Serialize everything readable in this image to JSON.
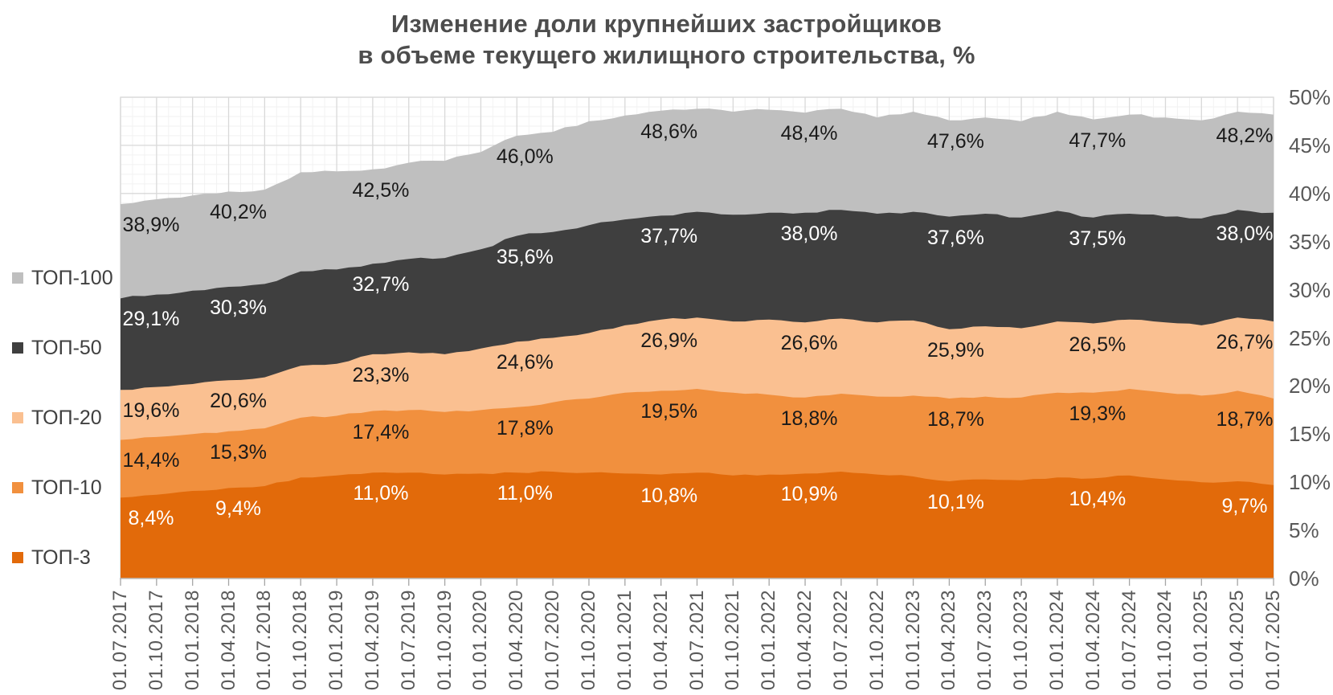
{
  "title": {
    "line1": "Изменение доли крупнейших застройщиков",
    "line2": "в объеме текущего жилищного строительства, %"
  },
  "chart_data": {
    "type": "area",
    "overlapping": true,
    "title": "Изменение доли крупнейших застройщиков в объеме текущего жилищного строительства, %",
    "ylim": [
      0,
      50
    ],
    "y_tick_step": 5,
    "y_tick_labels": [
      "0%",
      "5%",
      "10%",
      "15%",
      "20%",
      "25%",
      "30%",
      "35%",
      "40%",
      "45%",
      "50%"
    ],
    "grid": {
      "major_color": "#d9d9d9",
      "minor_color": "#f2f2f2",
      "minor_vertical_per_quarter": 3,
      "minor_horizontal_step_pct": 1
    },
    "legend_position": "left",
    "x": [
      "01.07.2017",
      "01.10.2017",
      "01.01.2018",
      "01.04.2018",
      "01.07.2018",
      "01.10.2018",
      "01.01.2019",
      "01.04.2019",
      "01.07.2019",
      "01.10.2019",
      "01.01.2020",
      "01.04.2020",
      "01.07.2020",
      "01.10.2020",
      "01.01.2021",
      "01.04.2021",
      "01.07.2021",
      "01.10.2021",
      "01.01.2022",
      "01.04.2022",
      "01.07.2022",
      "01.10.2022",
      "01.01.2023",
      "01.04.2023",
      "01.07.2023",
      "01.10.2023",
      "01.01.2024",
      "01.04.2024",
      "01.07.2024",
      "01.10.2024",
      "01.01.2025",
      "01.04.2025",
      "01.07.2025"
    ],
    "labeled_indices": [
      0,
      3,
      7,
      11,
      15,
      19,
      23,
      27,
      32
    ],
    "series": [
      {
        "name": "ТОП-100",
        "color": "#BFBFBF",
        "label_color": "#1a1a1a",
        "values": [
          38.9,
          39.4,
          39.8,
          40.2,
          40.4,
          42.2,
          42.3,
          42.5,
          43.2,
          43.4,
          44.3,
          46.0,
          46.4,
          47.5,
          48.1,
          48.6,
          48.8,
          48.5,
          48.7,
          48.4,
          48.8,
          47.9,
          48.5,
          47.6,
          47.9,
          47.5,
          48.5,
          47.7,
          48.2,
          47.9,
          47.6,
          48.5,
          48.2
        ],
        "labels": [
          "38,9%",
          "40,2%",
          "42,5%",
          "46,0%",
          "48,6%",
          "48,4%",
          "47,6%",
          "47,7%",
          "48,2%"
        ]
      },
      {
        "name": "ТОП-50",
        "color": "#3F3F3F",
        "label_color": "#ffffff",
        "values": [
          29.1,
          29.5,
          29.9,
          30.3,
          30.6,
          31.9,
          32.1,
          32.7,
          33.2,
          33.3,
          34.2,
          35.6,
          36.0,
          36.7,
          37.3,
          37.7,
          38.1,
          37.8,
          38.0,
          38.0,
          38.3,
          37.9,
          38.1,
          37.6,
          37.9,
          37.5,
          38.2,
          37.5,
          37.9,
          37.6,
          37.4,
          38.3,
          38.0
        ],
        "labels": [
          "29,1%",
          "30,3%",
          "32,7%",
          "35,6%",
          "37,7%",
          "38,0%",
          "37,6%",
          "37,5%",
          "38,0%"
        ]
      },
      {
        "name": "ТОП-20",
        "color": "#FAC091",
        "label_color": "#1a1a1a",
        "values": [
          19.6,
          19.9,
          20.2,
          20.6,
          20.9,
          22.1,
          22.3,
          23.3,
          23.5,
          23.3,
          23.9,
          24.6,
          25.0,
          25.5,
          26.3,
          26.9,
          27.1,
          26.7,
          26.9,
          26.6,
          27.0,
          26.6,
          26.8,
          25.9,
          26.2,
          26.0,
          26.7,
          26.5,
          26.9,
          26.6,
          26.3,
          27.1,
          26.7
        ],
        "labels": [
          "19,6%",
          "20,6%",
          "23,3%",
          "24,6%",
          "26,9%",
          "26,6%",
          "25,9%",
          "26,5%",
          "26,7%"
        ]
      },
      {
        "name": "ТОП-10",
        "color": "#F1903E",
        "label_color": "#1a1a1a",
        "values": [
          14.4,
          14.7,
          15.0,
          15.3,
          15.6,
          16.7,
          16.9,
          17.4,
          17.5,
          17.3,
          17.5,
          17.8,
          18.3,
          18.7,
          19.3,
          19.5,
          19.7,
          19.3,
          19.1,
          18.8,
          19.2,
          18.9,
          19.0,
          18.7,
          18.9,
          18.8,
          19.3,
          19.3,
          19.7,
          19.3,
          19.0,
          19.5,
          18.7
        ],
        "labels": [
          "14,4%",
          "15,3%",
          "17,4%",
          "17,8%",
          "19,5%",
          "18,8%",
          "18,7%",
          "19,3%",
          "18,7%"
        ]
      },
      {
        "name": "ТОП-3",
        "color": "#E26A0A",
        "label_color": "#ffffff",
        "values": [
          8.4,
          8.7,
          9.1,
          9.4,
          9.6,
          10.5,
          10.7,
          11.0,
          11.0,
          10.8,
          10.9,
          11.0,
          11.1,
          11.0,
          10.9,
          10.8,
          11.0,
          10.7,
          10.8,
          10.9,
          11.1,
          10.8,
          10.6,
          10.1,
          10.3,
          10.2,
          10.5,
          10.4,
          10.7,
          10.3,
          10.0,
          10.1,
          9.7
        ],
        "labels": [
          "8,4%",
          "9,4%",
          "11,0%",
          "11,0%",
          "10,8%",
          "10,9%",
          "10,1%",
          "10,4%",
          "9,7%"
        ]
      }
    ],
    "legend": [
      "ТОП-100",
      "ТОП-50",
      "ТОП-20",
      "ТОП-10",
      "ТОП-3"
    ],
    "axis_colors": {
      "axis_line": "#bfbfbf",
      "tick": "#a6a6a6",
      "tick_label": "#595959"
    }
  }
}
